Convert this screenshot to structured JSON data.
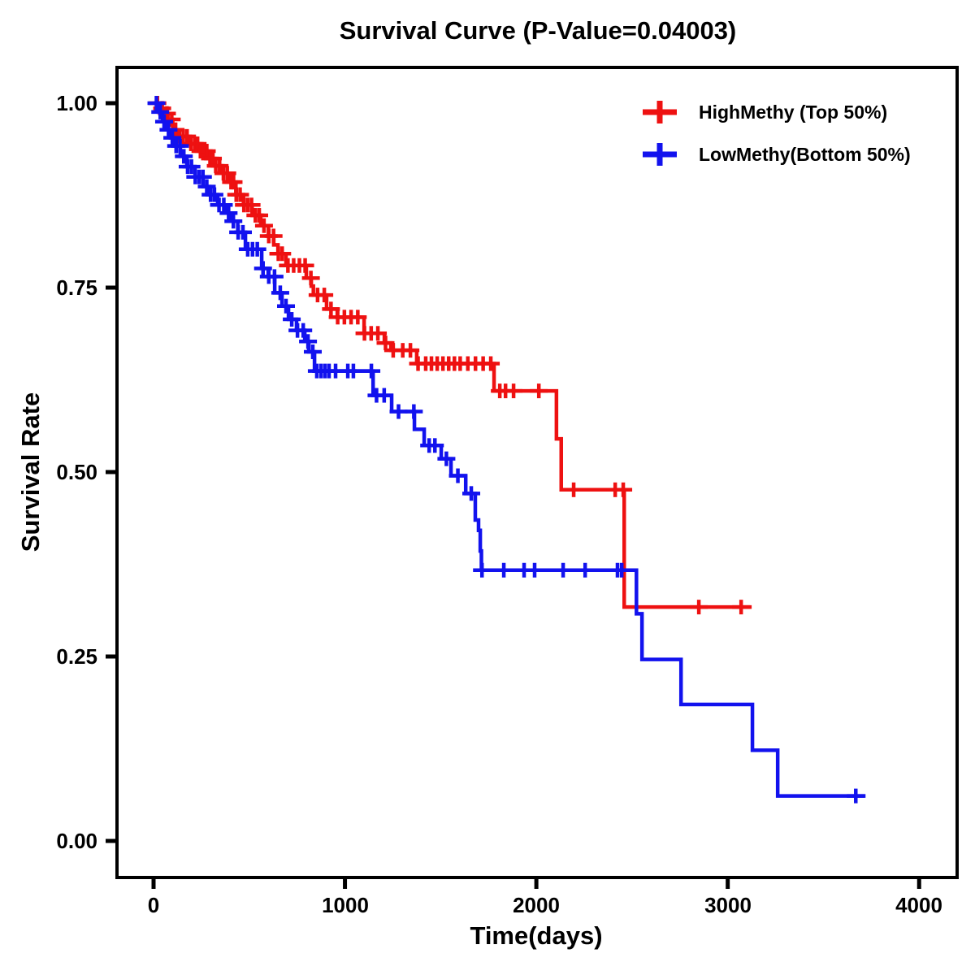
{
  "title": "Survival Curve (P-Value=0.04003)",
  "axes": {
    "x_label": "Time(days)",
    "y_label": "Survival Rate",
    "x_tick_labels": [
      "0",
      "1000",
      "2000",
      "3000",
      "4000"
    ],
    "y_tick_labels": [
      "1.00",
      "0.75",
      "0.50",
      "0.25",
      "0.00"
    ]
  },
  "legend": [
    {
      "label": "HighMethy (Top 50%)",
      "color": "#ee1111",
      "marker": "plus-icon"
    },
    {
      "label": "LowMethy(Bottom 50%)",
      "color": "#1212ee",
      "marker": "plus-icon"
    }
  ],
  "colors": {
    "high_methy": "#ee1111",
    "low_methy": "#1212ee",
    "frame": "#000000",
    "background": "#ffffff"
  },
  "chart_data": {
    "type": "line",
    "variant": "kaplan_meier_step",
    "title": "Survival Curve (P-Value=0.04003)",
    "p_value": "0.04003",
    "xlabel": "Time(days)",
    "ylabel": "Survival Rate",
    "xlim": [
      -190,
      4200
    ],
    "ylim": [
      -0.05,
      1.05
    ],
    "x_tick_values": [
      0,
      1000,
      2000,
      3000,
      4000
    ],
    "y_tick_values": [
      0,
      0.25,
      0.5,
      0.75,
      1.0
    ],
    "grid": false,
    "legend_position": "top-right",
    "series": [
      {
        "name": "HighMethy (Top 50%)",
        "color": "#ee1111",
        "steps": [
          [
            0,
            1.0
          ],
          [
            25,
            0.993
          ],
          [
            50,
            0.986
          ],
          [
            75,
            0.978
          ],
          [
            100,
            0.964
          ],
          [
            130,
            0.955
          ],
          [
            180,
            0.945
          ],
          [
            240,
            0.935
          ],
          [
            280,
            0.925
          ],
          [
            320,
            0.915
          ],
          [
            355,
            0.905
          ],
          [
            400,
            0.893
          ],
          [
            430,
            0.876
          ],
          [
            470,
            0.862
          ],
          [
            515,
            0.848
          ],
          [
            560,
            0.834
          ],
          [
            600,
            0.82
          ],
          [
            628,
            0.808
          ],
          [
            650,
            0.796
          ],
          [
            692,
            0.78
          ],
          [
            798,
            0.763
          ],
          [
            824,
            0.752
          ],
          [
            835,
            0.74
          ],
          [
            904,
            0.721
          ],
          [
            960,
            0.71
          ],
          [
            1100,
            0.688
          ],
          [
            1206,
            0.675
          ],
          [
            1240,
            0.665
          ],
          [
            1375,
            0.647
          ],
          [
            1779,
            0.61
          ],
          [
            2105,
            0.545
          ],
          [
            2130,
            0.476
          ],
          [
            2459,
            0.317
          ]
        ],
        "end_time": 3125,
        "censor_times": [
          20,
          45,
          70,
          95,
          115,
          135,
          155,
          175,
          195,
          215,
          230,
          245,
          262,
          278,
          295,
          310,
          325,
          345,
          365,
          385,
          405,
          418,
          432,
          452,
          472,
          492,
          512,
          532,
          552,
          577,
          602,
          627,
          652,
          672,
          702,
          732,
          762,
          792,
          822,
          857,
          892,
          927,
          962,
          997,
          1032,
          1067,
          1102,
          1137,
          1172,
          1212,
          1252,
          1302,
          1342,
          1382,
          1422,
          1452,
          1482,
          1512,
          1542,
          1572,
          1602,
          1642,
          1682,
          1722,
          1762,
          1809,
          1839,
          1881,
          2013,
          2195,
          2412,
          2454,
          2849,
          3070
        ]
      },
      {
        "name": "LowMethy(Bottom 50%)",
        "color": "#1212ee",
        "steps": [
          [
            0,
            1.0
          ],
          [
            25,
            0.988
          ],
          [
            47,
            0.975
          ],
          [
            68,
            0.964
          ],
          [
            89,
            0.953
          ],
          [
            110,
            0.942
          ],
          [
            140,
            0.928
          ],
          [
            174,
            0.914
          ],
          [
            217,
            0.9
          ],
          [
            259,
            0.887
          ],
          [
            293,
            0.876
          ],
          [
            335,
            0.862
          ],
          [
            378,
            0.851
          ],
          [
            408,
            0.84
          ],
          [
            440,
            0.825
          ],
          [
            480,
            0.802
          ],
          [
            565,
            0.776
          ],
          [
            599,
            0.765
          ],
          [
            633,
            0.743
          ],
          [
            671,
            0.725
          ],
          [
            705,
            0.707
          ],
          [
            747,
            0.692
          ],
          [
            790,
            0.677
          ],
          [
            811,
            0.663
          ],
          [
            841,
            0.637
          ],
          [
            1147,
            0.604
          ],
          [
            1244,
            0.582
          ],
          [
            1363,
            0.558
          ],
          [
            1414,
            0.536
          ],
          [
            1503,
            0.518
          ],
          [
            1554,
            0.495
          ],
          [
            1631,
            0.471
          ],
          [
            1681,
            0.435
          ],
          [
            1698,
            0.421
          ],
          [
            1707,
            0.393
          ],
          [
            1713,
            0.367
          ],
          [
            2523,
            0.308
          ],
          [
            2552,
            0.246
          ],
          [
            2756,
            0.185
          ],
          [
            3129,
            0.123
          ],
          [
            3261,
            0.061
          ]
        ],
        "end_time": 3720,
        "censor_times": [
          15,
          35,
          55,
          78,
          98,
          118,
          138,
          158,
          178,
          198,
          218,
          238,
          258,
          278,
          298,
          318,
          342,
          367,
          392,
          417,
          442,
          467,
          492,
          517,
          542,
          572,
          602,
          632,
          662,
          692,
          722,
          752,
          782,
          807,
          832,
          853,
          875,
          896,
          917,
          951,
          1015,
          1044,
          1138,
          1165,
          1205,
          1280,
          1360,
          1440,
          1470,
          1530,
          1590,
          1660,
          1716,
          1830,
          1936,
          1991,
          2140,
          2255,
          2424,
          2446,
          3669
        ]
      }
    ]
  }
}
